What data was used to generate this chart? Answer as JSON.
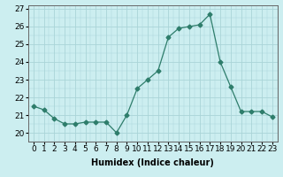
{
  "x": [
    0,
    1,
    2,
    3,
    4,
    5,
    6,
    7,
    8,
    9,
    10,
    11,
    12,
    13,
    14,
    15,
    16,
    17,
    18,
    19,
    20,
    21,
    22,
    23
  ],
  "y": [
    21.5,
    21.3,
    20.8,
    20.5,
    20.5,
    20.6,
    20.6,
    20.6,
    20.0,
    21.0,
    22.5,
    23.0,
    23.5,
    25.4,
    25.9,
    26.0,
    26.1,
    26.7,
    24.0,
    22.6,
    21.2,
    21.2,
    21.2,
    20.9
  ],
  "title": "",
  "xlabel": "Humidex (Indice chaleur)",
  "ylabel": "",
  "xlim": [
    -0.5,
    23.5
  ],
  "ylim": [
    19.5,
    27.2
  ],
  "yticks": [
    20,
    21,
    22,
    23,
    24,
    25,
    26,
    27
  ],
  "xticks": [
    0,
    1,
    2,
    3,
    4,
    5,
    6,
    7,
    8,
    9,
    10,
    11,
    12,
    13,
    14,
    15,
    16,
    17,
    18,
    19,
    20,
    21,
    22,
    23
  ],
  "line_color": "#2e7d6b",
  "marker": "D",
  "marker_size": 2.5,
  "bg_color": "#cceef0",
  "grid_color": "#aad4d8",
  "label_fontsize": 7,
  "tick_fontsize": 6.5
}
